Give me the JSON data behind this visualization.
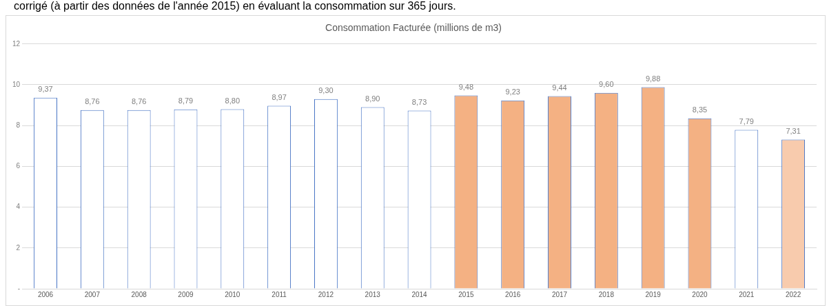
{
  "chart_data": {
    "type": "bar",
    "title": "Consommation Facturée (millions de m3)",
    "annotations": [
      "corrigé (à partir des données de l'année 2015) en évaluant la consommation sur 365 jours."
    ],
    "categories": [
      "2006",
      "2007",
      "2008",
      "2009",
      "2010",
      "2011",
      "2012",
      "2013",
      "2014",
      "2015",
      "2016",
      "2017",
      "2018",
      "2019",
      "2020",
      "2021",
      "2022"
    ],
    "values": [
      9.37,
      8.76,
      8.76,
      8.79,
      8.8,
      8.97,
      9.3,
      8.9,
      8.73,
      9.48,
      9.23,
      9.44,
      9.6,
      9.88,
      8.35,
      7.79,
      7.31
    ],
    "colors": [
      "#ffffff",
      "#ffffff",
      "#ffffff",
      "#ffffff",
      "#ffffff",
      "#ffffff",
      "#ffffff",
      "#ffffff",
      "#ffffff",
      "#f4b183",
      "#f4b183",
      "#f4b183",
      "#f4b183",
      "#f4b183",
      "#f4b183",
      "#ffffff",
      "#f8cbad"
    ],
    "value_labels": [
      "9,37",
      "8,76",
      "8,76",
      "8,79",
      "8,80",
      "8,97",
      "9,30",
      "8,90",
      "8,73",
      "9,48",
      "9,23",
      "9,44",
      "9,60",
      "9,88",
      "8,35",
      "7,79",
      "7,31"
    ],
    "ylim": [
      0,
      12
    ],
    "yticks": [
      {
        "value": 0,
        "label": "-"
      },
      2,
      4,
      6,
      8,
      10,
      12
    ],
    "grid": "y",
    "legend": false
  }
}
